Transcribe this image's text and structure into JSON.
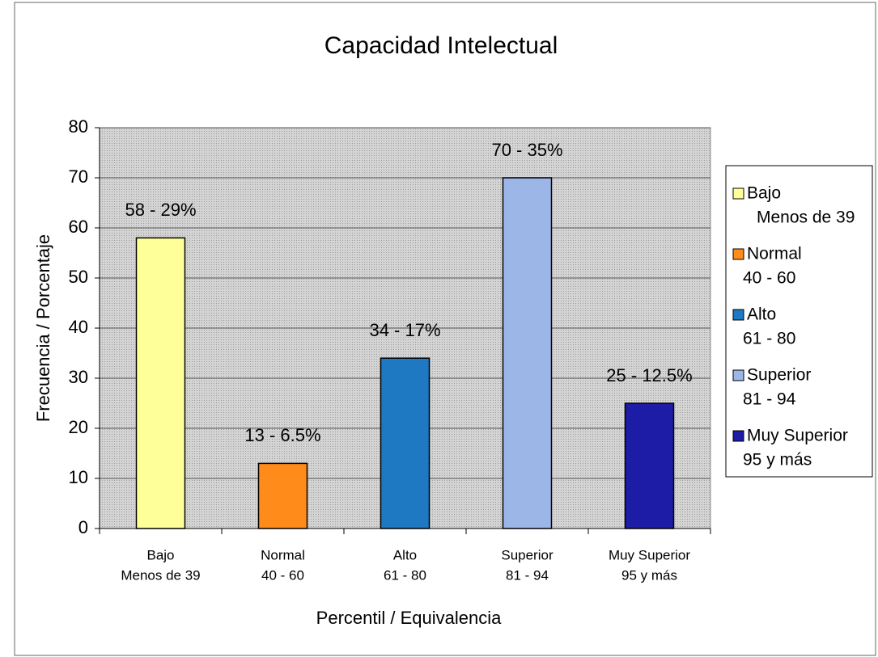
{
  "chart_data": {
    "type": "bar",
    "title": "Capacidad Intelectual",
    "x_label": "Percentil / Equivalencia",
    "y_label": "Frecuencia / Porcentaje",
    "categories": [
      "Bajo",
      "Normal",
      "Alto",
      "Superior",
      "Muy Superior"
    ],
    "ranges": [
      "Menos de 39",
      "40 - 60",
      "61 - 80",
      "81 - 94",
      "95 y más"
    ],
    "values": [
      58,
      13,
      34,
      70,
      25
    ],
    "value_labels": [
      "58 - 29%",
      "13 - 6.5%",
      "34 - 17%",
      "70 - 35%",
      "25 - 12.5%"
    ],
    "colors": [
      "#ffff99",
      "#ff8c1a",
      "#1f78c2",
      "#9db6e8",
      "#1c1ca6"
    ],
    "ylim": [
      0,
      80
    ],
    "yticks": [
      0,
      10,
      20,
      30,
      40,
      50,
      60,
      70,
      80
    ],
    "grid": true,
    "legend": "right"
  }
}
